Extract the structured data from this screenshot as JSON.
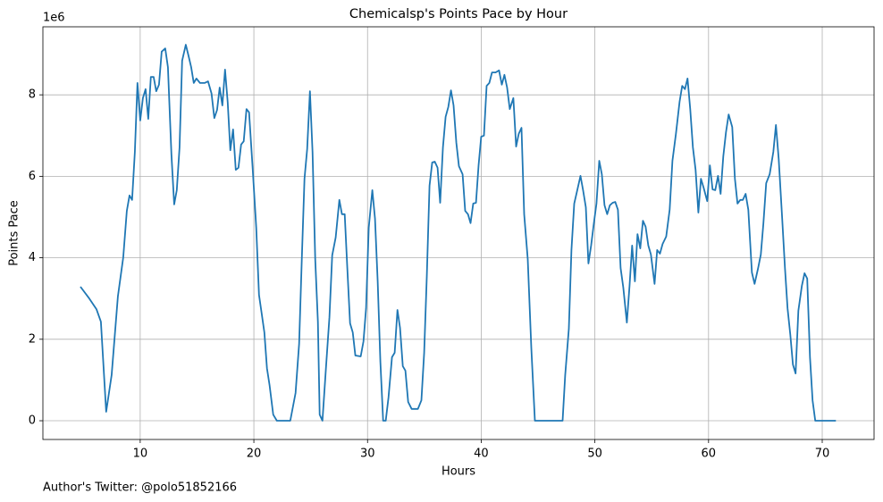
{
  "chart_data": {
    "type": "line",
    "title": "Chemicalsp's Points Pace by Hour",
    "x_label": "Hours",
    "y_label": "Points Pace",
    "y_offset_label": "1e6",
    "footnote": "Author's Twitter: @polo51852166",
    "xlim": [
      1.44,
      74.56
    ],
    "ylim": [
      -0.46,
      9.67
    ],
    "xticks": [
      10,
      20,
      30,
      40,
      50,
      60,
      70
    ],
    "yticks": [
      0,
      2,
      4,
      6,
      8
    ],
    "grid": true,
    "x": [
      4.74,
      5.52,
      6.15,
      6.54,
      7.01,
      7.49,
      8.04,
      8.51,
      8.82,
      9.06,
      9.29,
      9.53,
      9.76,
      10.0,
      10.24,
      10.47,
      10.71,
      10.94,
      11.18,
      11.41,
      11.65,
      11.89,
      12.2,
      12.44,
      12.75,
      12.99,
      13.22,
      13.46,
      13.69,
      14.01,
      14.24,
      14.48,
      14.71,
      14.95,
      15.26,
      15.66,
      15.97,
      16.28,
      16.52,
      16.76,
      16.99,
      17.23,
      17.46,
      17.7,
      17.93,
      18.17,
      18.41,
      18.64,
      18.88,
      19.11,
      19.35,
      19.58,
      19.9,
      20.21,
      20.45,
      20.68,
      20.92,
      21.15,
      21.39,
      21.7,
      22.02,
      22.49,
      23.2,
      23.67,
      23.98,
      24.22,
      24.45,
      24.69,
      24.93,
      25.16,
      25.4,
      25.63,
      25.79,
      26.03,
      26.34,
      26.65,
      26.89,
      27.2,
      27.52,
      27.75,
      27.99,
      28.22,
      28.46,
      28.7,
      28.93,
      29.4,
      29.64,
      29.87,
      30.11,
      30.42,
      30.66,
      30.89,
      31.13,
      31.37,
      31.6,
      31.84,
      32.15,
      32.39,
      32.63,
      32.86,
      33.1,
      33.33,
      33.57,
      33.88,
      34.43,
      34.74,
      34.98,
      35.22,
      35.45,
      35.69,
      35.92,
      36.16,
      36.39,
      36.63,
      36.87,
      37.1,
      37.34,
      37.57,
      37.81,
      38.04,
      38.36,
      38.59,
      38.83,
      39.06,
      39.3,
      39.54,
      39.77,
      40.0,
      40.24,
      40.48,
      40.71,
      40.95,
      41.26,
      41.57,
      41.81,
      42.04,
      42.28,
      42.51,
      42.83,
      43.07,
      43.3,
      43.54,
      43.78,
      44.09,
      44.41,
      44.72,
      47.16,
      47.39,
      47.71,
      47.94,
      48.18,
      48.41,
      48.73,
      48.96,
      49.2,
      49.43,
      49.67,
      49.91,
      50.14,
      50.38,
      50.61,
      50.85,
      51.08,
      51.32,
      51.56,
      51.79,
      52.03,
      52.26,
      52.5,
      52.81,
      53.05,
      53.28,
      53.52,
      53.75,
      53.99,
      54.23,
      54.46,
      54.7,
      54.93,
      55.25,
      55.48,
      55.72,
      55.96,
      56.27,
      56.58,
      56.82,
      57.13,
      57.45,
      57.68,
      57.92,
      58.15,
      58.39,
      58.62,
      58.86,
      59.1,
      59.33,
      59.57,
      59.88,
      60.12,
      60.35,
      60.59,
      60.83,
      61.06,
      61.3,
      61.53,
      61.77,
      62.08,
      62.32,
      62.55,
      62.79,
      63.02,
      63.26,
      63.5,
      63.81,
      64.05,
      64.36,
      64.6,
      64.83,
      65.07,
      65.38,
      65.7,
      65.93,
      66.17,
      66.48,
      66.72,
      66.95,
      67.19,
      67.42,
      67.66,
      67.9,
      68.21,
      68.44,
      68.68,
      68.92,
      69.15,
      69.39,
      69.95,
      71.2
    ],
    "series": [
      {
        "color": "#1f77b4",
        "values": [
          3.29,
          3.0,
          2.74,
          2.43,
          0.22,
          1.12,
          3.05,
          4.01,
          5.15,
          5.53,
          5.42,
          6.6,
          8.29,
          7.37,
          7.92,
          8.14,
          7.41,
          8.44,
          8.44,
          8.09,
          8.25,
          9.06,
          9.14,
          8.68,
          6.54,
          5.31,
          5.66,
          6.71,
          8.84,
          9.23,
          8.97,
          8.68,
          8.29,
          8.4,
          8.29,
          8.29,
          8.33,
          8.03,
          7.43,
          7.63,
          8.18,
          7.74,
          8.62,
          7.81,
          6.64,
          7.15,
          6.16,
          6.21,
          6.78,
          6.86,
          7.65,
          7.57,
          6.16,
          4.74,
          3.09,
          2.65,
          2.17,
          1.29,
          0.86,
          0.15,
          0,
          0,
          0,
          0.68,
          1.89,
          3.97,
          5.94,
          6.67,
          8.09,
          6.6,
          3.97,
          2.43,
          0.15,
          0,
          1.29,
          2.54,
          4.06,
          4.5,
          5.42,
          5.07,
          5.07,
          3.75,
          2.39,
          2.17,
          1.6,
          1.58,
          1.95,
          2.76,
          4.74,
          5.66,
          4.96,
          3.42,
          1.45,
          0,
          0,
          0.57,
          1.56,
          1.67,
          2.72,
          2.28,
          1.34,
          1.23,
          0.46,
          0.29,
          0.29,
          0.5,
          1.67,
          3.57,
          5.77,
          6.34,
          6.36,
          6.21,
          5.35,
          6.71,
          7.46,
          7.7,
          8.11,
          7.74,
          6.82,
          6.25,
          6.05,
          5.15,
          5.07,
          4.85,
          5.33,
          5.35,
          6.27,
          6.97,
          7.0,
          8.22,
          8.29,
          8.55,
          8.55,
          8.6,
          8.25,
          8.49,
          8.18,
          7.65,
          7.92,
          6.73,
          7.04,
          7.19,
          5.07,
          3.97,
          1.78,
          0,
          0,
          1.12,
          2.26,
          4.19,
          5.33,
          5.61,
          6.01,
          5.66,
          5.24,
          3.86,
          4.3,
          4.85,
          5.33,
          6.38,
          6.05,
          5.29,
          5.07,
          5.29,
          5.35,
          5.37,
          5.18,
          3.75,
          3.27,
          2.41,
          3.31,
          4.3,
          3.42,
          4.58,
          4.23,
          4.91,
          4.76,
          4.3,
          4.08,
          3.36,
          4.19,
          4.1,
          4.34,
          4.52,
          5.18,
          6.38,
          7.04,
          7.83,
          8.22,
          8.14,
          8.4,
          7.65,
          6.71,
          6.16,
          5.11,
          5.94,
          5.72,
          5.39,
          6.27,
          5.68,
          5.66,
          6.01,
          5.57,
          6.49,
          7.08,
          7.52,
          7.21,
          5.94,
          5.33,
          5.42,
          5.42,
          5.57,
          5.18,
          3.64,
          3.36,
          3.75,
          4.08,
          4.85,
          5.83,
          6.05,
          6.6,
          7.26,
          6.43,
          4.96,
          3.75,
          2.76,
          2.11,
          1.38,
          1.16,
          2.7,
          3.31,
          3.62,
          3.49,
          1.56,
          0.5,
          0,
          0,
          0
        ]
      }
    ]
  }
}
